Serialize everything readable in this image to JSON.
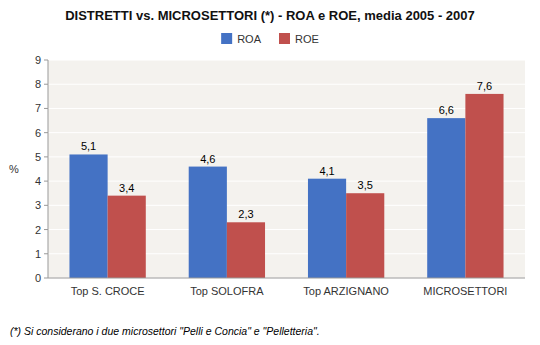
{
  "chart_data": {
    "type": "bar",
    "title": "DISTRETTI vs. MICROSETTORI (*) - ROA e ROE, media 2005 - 2007",
    "ylabel": "%",
    "categories": [
      "Top S. CROCE",
      "Top SOLOFRA",
      "Top ARZIGNANO",
      "MICROSETTORI"
    ],
    "series": [
      {
        "name": "ROA",
        "color": "#4472C4",
        "values": [
          5.1,
          4.6,
          4.1,
          6.6
        ],
        "value_labels": [
          "5,1",
          "4,6",
          "4,1",
          "6,6"
        ]
      },
      {
        "name": "ROE",
        "color": "#C0504D",
        "values": [
          3.4,
          2.3,
          3.5,
          7.6
        ],
        "value_labels": [
          "3,4",
          "2,3",
          "3,5",
          "7,6"
        ]
      }
    ],
    "ylim": [
      0,
      9
    ],
    "yticks": [
      0,
      1,
      2,
      3,
      4,
      5,
      6,
      7,
      8,
      9
    ],
    "grid": true,
    "legend": "top",
    "data_labels": true,
    "annotations": [
      "(*) Si considerano i due microsettori \"Pelli e Concia\" e \"Pelletteria\"."
    ]
  }
}
